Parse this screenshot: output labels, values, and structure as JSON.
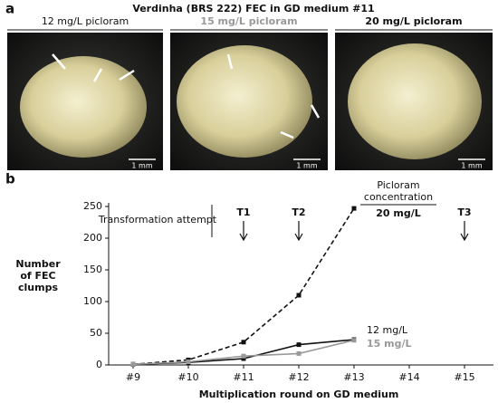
{
  "panel_a": {
    "label": "a",
    "title": "Verdinha (BRS 222) FEC in GD medium #11",
    "panels": [
      {
        "header": "12 mg/L picloram",
        "scale": "1 mm"
      },
      {
        "header": "15 mg/L picloram",
        "scale": "1 mm"
      },
      {
        "header": "20 mg/L picloram",
        "scale": "1 mm"
      }
    ]
  },
  "chart_data": {
    "type": "line",
    "label": "b",
    "categories": [
      "#9",
      "#10",
      "#11",
      "#12",
      "#13",
      "#14",
      "#15"
    ],
    "series": [
      {
        "name": "20 mg/L",
        "color": "#111111",
        "dash": true,
        "values": [
          1,
          8,
          36,
          110,
          247,
          null,
          null
        ]
      },
      {
        "name": "12 mg/L",
        "color": "#111111",
        "dash": false,
        "values": [
          1,
          4,
          10,
          32,
          40,
          null,
          null
        ]
      },
      {
        "name": "15 mg/L",
        "color": "#999999",
        "dash": false,
        "values": [
          1,
          5,
          14,
          18,
          39,
          null,
          null
        ]
      }
    ],
    "ylim": [
      0,
      250
    ],
    "yticks": [
      0,
      50,
      100,
      150,
      200,
      250
    ],
    "ylabel": [
      "Number",
      "of FEC",
      "clumps"
    ],
    "xlabel": "Multiplication round on GD medium",
    "annotation": "Transformation attempt",
    "legend_title": [
      "Picloram",
      "concentration"
    ],
    "markers": [
      {
        "label": "T1",
        "at": "#11"
      },
      {
        "label": "T2",
        "at": "#12"
      },
      {
        "label": "T3",
        "at": "#15"
      }
    ]
  }
}
